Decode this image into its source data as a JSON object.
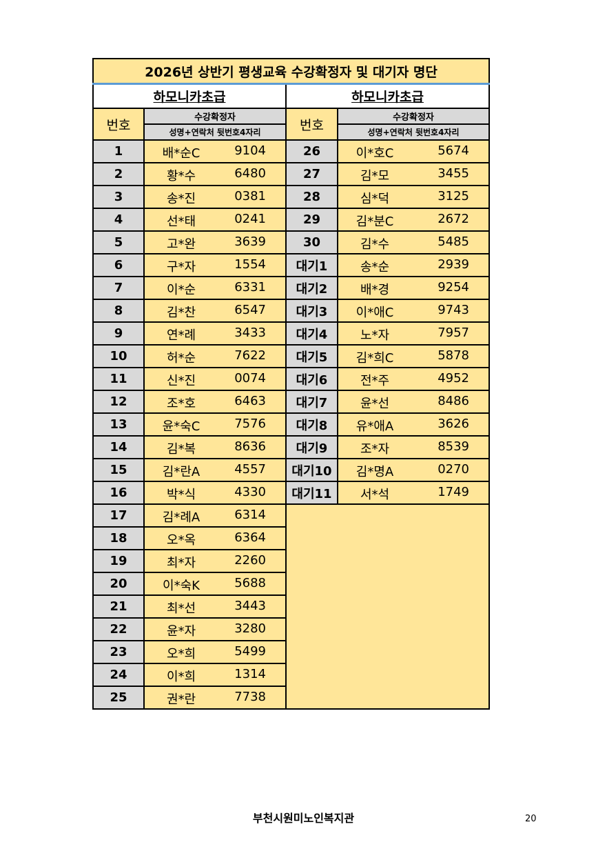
{
  "title": "2026년 상반기 평생교육 수강확정자 및 대기자 명단",
  "left": {
    "course": "하모니카초급",
    "header_num": "번호",
    "header_group": "수강확정자",
    "header_sub": "성명+연락처 뒷번호4자리",
    "rows": [
      {
        "no": "1",
        "name": "배*순C",
        "phone": "9104"
      },
      {
        "no": "2",
        "name": "황*수",
        "phone": "6480"
      },
      {
        "no": "3",
        "name": "송*진",
        "phone": "0381"
      },
      {
        "no": "4",
        "name": "선*태",
        "phone": "0241"
      },
      {
        "no": "5",
        "name": "고*완",
        "phone": "3639"
      },
      {
        "no": "6",
        "name": "구*자",
        "phone": "1554"
      },
      {
        "no": "7",
        "name": "이*순",
        "phone": "6331"
      },
      {
        "no": "8",
        "name": "김*찬",
        "phone": "6547"
      },
      {
        "no": "9",
        "name": "연*례",
        "phone": "3433"
      },
      {
        "no": "10",
        "name": "허*순",
        "phone": "7622"
      },
      {
        "no": "11",
        "name": "신*진",
        "phone": "0074"
      },
      {
        "no": "12",
        "name": "조*호",
        "phone": "6463"
      },
      {
        "no": "13",
        "name": "윤*숙C",
        "phone": "7576"
      },
      {
        "no": "14",
        "name": "김*복",
        "phone": "8636"
      },
      {
        "no": "15",
        "name": "김*란A",
        "phone": "4557"
      },
      {
        "no": "16",
        "name": "박*식",
        "phone": "4330"
      },
      {
        "no": "17",
        "name": "김*례A",
        "phone": "6314"
      },
      {
        "no": "18",
        "name": "오*옥",
        "phone": "6364"
      },
      {
        "no": "19",
        "name": "최*자",
        "phone": "2260"
      },
      {
        "no": "20",
        "name": "이*숙K",
        "phone": "5688"
      },
      {
        "no": "21",
        "name": "최*선",
        "phone": "3443"
      },
      {
        "no": "22",
        "name": "윤*자",
        "phone": "3280"
      },
      {
        "no": "23",
        "name": "오*희",
        "phone": "5499"
      },
      {
        "no": "24",
        "name": "이*희",
        "phone": "1314"
      },
      {
        "no": "25",
        "name": "권*란",
        "phone": "7738"
      }
    ]
  },
  "right": {
    "course": "하모니카초급",
    "header_num": "번호",
    "header_group": "수강확정자",
    "header_sub": "성명+연락처 뒷번호4자리",
    "rows": [
      {
        "no": "26",
        "name": "이*호C",
        "phone": "5674"
      },
      {
        "no": "27",
        "name": "김*모",
        "phone": "3455"
      },
      {
        "no": "28",
        "name": "심*덕",
        "phone": "3125"
      },
      {
        "no": "29",
        "name": "김*분C",
        "phone": "2672"
      },
      {
        "no": "30",
        "name": "김*수",
        "phone": "5485"
      },
      {
        "no": "대기1",
        "name": "송*순",
        "phone": "2939"
      },
      {
        "no": "대기2",
        "name": "배*경",
        "phone": "9254"
      },
      {
        "no": "대기3",
        "name": "이*애C",
        "phone": "9743"
      },
      {
        "no": "대기4",
        "name": "노*자",
        "phone": "7957"
      },
      {
        "no": "대기5",
        "name": "김*희C",
        "phone": "5878"
      },
      {
        "no": "대기6",
        "name": "전*주",
        "phone": "4952"
      },
      {
        "no": "대기7",
        "name": "윤*선",
        "phone": "8486"
      },
      {
        "no": "대기8",
        "name": "유*애A",
        "phone": "3626"
      },
      {
        "no": "대기9",
        "name": "조*자",
        "phone": "8539"
      },
      {
        "no": "대기10",
        "name": "김*명A",
        "phone": "0270"
      },
      {
        "no": "대기11",
        "name": "서*석",
        "phone": "1749"
      }
    ]
  },
  "footer": "부천시원미노인복지관",
  "page_number": "20",
  "colors": {
    "cell_yellow": "#FFE699",
    "cell_gray": "#D9D9D9",
    "title_rule": "#5B9BD5"
  }
}
